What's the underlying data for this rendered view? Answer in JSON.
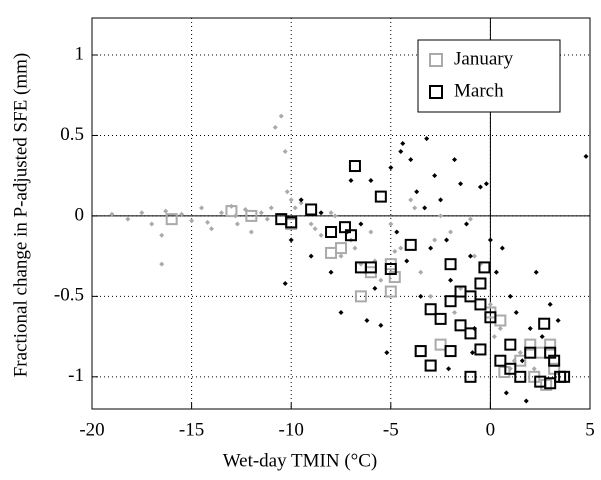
{
  "chart_data": {
    "type": "scatter",
    "x_label": "Wet-day TMIN (°C)",
    "y_label": "Fractional change in P-adjusted SFE (mm)",
    "xlim": [
      -20,
      5
    ],
    "ylim": [
      -1.2,
      1.23
    ],
    "xticks": [
      -20,
      -15,
      -10,
      -5,
      0,
      5
    ],
    "yticks": [
      -1,
      -0.5,
      0,
      0.5,
      1
    ],
    "grid": true,
    "legend": "upper right",
    "series": [
      {
        "color": "#aaaaaa",
        "marker": "dot",
        "x": [
          -19,
          -18.2,
          -17.5,
          -17,
          -16.5,
          -16.3,
          -15.5,
          -15,
          -14.5,
          -14,
          -13.5,
          -13,
          -12.7,
          -12.3,
          -12,
          -11.5,
          -11,
          -10.8,
          -10.5,
          -10.3,
          -10.2,
          -10,
          -9.5,
          -9,
          -8.5,
          -8,
          -7.5,
          -7,
          -6.5,
          -6,
          -5.5,
          -5,
          -4.5,
          -4,
          -3.5,
          -3,
          -2.5,
          -2,
          -1.5,
          -1,
          -0.5,
          0,
          0.5,
          1,
          1.5,
          -16.5,
          -14.2,
          -12.8,
          -11.2,
          -9.8,
          -8.8,
          -7.8,
          -6.8,
          -5.8,
          -4.8,
          -3.8,
          -2.8,
          -1.8,
          -0.8,
          0.2,
          1.2,
          2.2
        ],
        "values": [
          0.01,
          -0.02,
          0.02,
          -0.05,
          -0.3,
          0.03,
          0.01,
          -0.03,
          0.05,
          -0.08,
          0.02,
          0.06,
          -0.05,
          0.04,
          -0.1,
          0.02,
          0.05,
          0.55,
          0.62,
          0.4,
          0.15,
          0.1,
          0.08,
          -0.05,
          -0.12,
          0.02,
          -0.25,
          -0.15,
          -0.3,
          -0.1,
          -0.4,
          -0.05,
          -0.2,
          0.1,
          -0.35,
          -0.5,
          0.0,
          -0.1,
          -0.45,
          -0.02,
          -0.3,
          -0.55,
          -0.7,
          -0.95,
          -0.85,
          -0.12,
          -0.04,
          0.0,
          -0.02,
          0.05,
          -0.08,
          0.0,
          -0.2,
          -0.28,
          -0.22,
          0.05,
          -0.15,
          -0.6,
          -0.25,
          -0.75,
          -0.9,
          -0.95
        ]
      },
      {
        "color": "#000000",
        "marker": "dot",
        "x": [
          -10.3,
          -10,
          -9.5,
          -9,
          -8.5,
          -8,
          -7.5,
          -7,
          -6.5,
          -6,
          -5.8,
          -5.5,
          -5,
          -4.7,
          -4.5,
          -4.2,
          -4,
          -3.7,
          -3.5,
          -3.2,
          -3,
          -2.8,
          -2.5,
          -2.2,
          -2,
          -1.8,
          -1.5,
          -1.2,
          -1,
          -0.8,
          -0.5,
          -0.2,
          0,
          0.3,
          0.6,
          1,
          1.3,
          1.6,
          2,
          2.3,
          2.6,
          3,
          3.4,
          4.8,
          -6.2,
          -4.4,
          -3.3,
          -2.1,
          -0.9,
          0.8,
          1.8,
          -7.2,
          -5.2
        ],
        "values": [
          -0.42,
          -0.15,
          0.1,
          -0.25,
          0.02,
          -0.35,
          -0.6,
          0.22,
          -0.05,
          0.22,
          -0.45,
          -0.68,
          0.3,
          -0.1,
          0.4,
          -0.28,
          0.35,
          0.15,
          -0.5,
          0.48,
          -0.2,
          0.25,
          0.1,
          -0.15,
          -0.4,
          0.35,
          0.2,
          -0.05,
          -0.25,
          -0.7,
          0.18,
          0.2,
          -0.15,
          -0.35,
          -0.2,
          -0.5,
          -0.6,
          -0.9,
          -0.7,
          -0.35,
          -0.75,
          -0.55,
          -0.65,
          0.37,
          -0.65,
          0.45,
          0.05,
          -0.95,
          -0.85,
          -1.1,
          -1.15,
          -0.1,
          -0.85
        ]
      },
      {
        "name": "January",
        "color": "#aaaaaa",
        "marker": "square",
        "x": [
          -16,
          -13,
          -12,
          -10,
          -8,
          -7.5,
          -6,
          -6.5,
          -5,
          -5,
          -4.8,
          -3.5,
          -2.5,
          -3,
          0,
          0.5,
          0.7,
          1.5,
          2,
          2.2,
          2.5,
          3,
          3.2,
          2.8
        ],
        "values": [
          -0.02,
          0.03,
          0,
          -0.05,
          -0.23,
          -0.2,
          -0.35,
          -0.5,
          -0.3,
          -0.47,
          -0.38,
          -0.84,
          -0.8,
          -0.93,
          -0.6,
          -0.65,
          -0.97,
          -0.9,
          -0.8,
          -1.0,
          -0.85,
          -0.8,
          -0.95,
          -1.05
        ]
      },
      {
        "name": "March",
        "color": "#000000",
        "marker": "square",
        "x": [
          -10.5,
          -10,
          -9,
          -8,
          -7.3,
          -7,
          -6.5,
          -6,
          -6.8,
          -5.5,
          -5,
          -4,
          -3,
          -2,
          -2.5,
          -2,
          -1.5,
          -1,
          -0.5,
          -0.3,
          -0.5,
          -1.5,
          -1,
          -0.5,
          -3.5,
          -2,
          -3,
          -1,
          0,
          0.5,
          1,
          1,
          1.5,
          2,
          2.5,
          2.7,
          3,
          3.2,
          3.5,
          3,
          3.7
        ],
        "values": [
          -0.02,
          -0.04,
          0.04,
          -0.1,
          -0.07,
          -0.12,
          -0.32,
          -0.32,
          0.31,
          0.12,
          -0.33,
          -0.18,
          -0.58,
          -0.3,
          -0.64,
          -0.53,
          -0.47,
          -0.5,
          -0.42,
          -0.32,
          -0.55,
          -0.68,
          -0.73,
          -0.83,
          -0.84,
          -0.84,
          -0.93,
          -1.0,
          -0.63,
          -0.9,
          -0.8,
          -0.95,
          -1.0,
          -0.85,
          -1.03,
          -0.67,
          -0.85,
          -0.9,
          -1.0,
          -1.04,
          -1.0
        ]
      }
    ]
  }
}
